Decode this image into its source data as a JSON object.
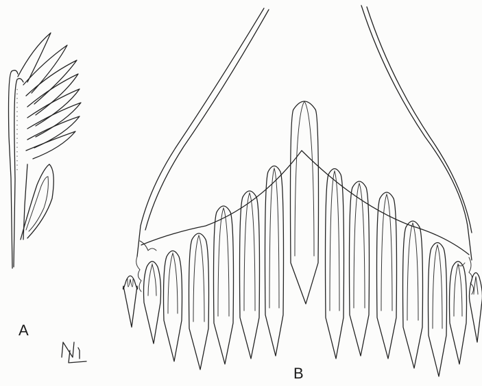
{
  "figure": {
    "panels": [
      {
        "label": "A"
      },
      {
        "label": "B"
      }
    ],
    "signature": "NL",
    "colors": {
      "ink": "#222222",
      "paper": "#fcfcfb"
    }
  }
}
